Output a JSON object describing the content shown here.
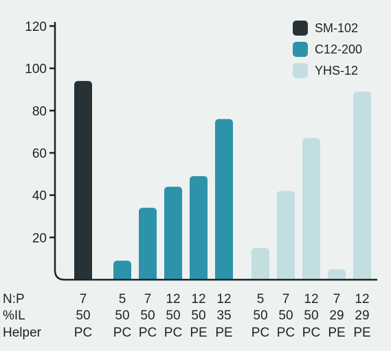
{
  "chart_data": {
    "type": "bar",
    "title": "",
    "xlabel": "",
    "ylabel": "",
    "ylim": [
      0,
      120
    ],
    "yticks": [
      20,
      40,
      60,
      80,
      100,
      120
    ],
    "grid": false,
    "legend_position": "top-right",
    "series": [
      {
        "name": "SM-102",
        "color": "#263236"
      },
      {
        "name": "C12-200",
        "color": "#2d93aa"
      },
      {
        "name": "YHS-12",
        "color": "#c3dee1"
      }
    ],
    "row_labels": [
      "N:P",
      "%IL",
      "Helper"
    ],
    "bars": [
      {
        "series": 0,
        "value": 94,
        "np": "7",
        "il": "50",
        "helper": "PC"
      },
      {
        "series": 1,
        "value": 9,
        "np": "5",
        "il": "50",
        "helper": "PC"
      },
      {
        "series": 1,
        "value": 34,
        "np": "7",
        "il": "50",
        "helper": "PC"
      },
      {
        "series": 1,
        "value": 44,
        "np": "12",
        "il": "50",
        "helper": "PC"
      },
      {
        "series": 1,
        "value": 49,
        "np": "12",
        "il": "50",
        "helper": "PE"
      },
      {
        "series": 1,
        "value": 76,
        "np": "12",
        "il": "35",
        "helper": "PE"
      },
      {
        "series": 2,
        "value": 15,
        "np": "5",
        "il": "50",
        "helper": "PC"
      },
      {
        "series": 2,
        "value": 42,
        "np": "7",
        "il": "50",
        "helper": "PC"
      },
      {
        "series": 2,
        "value": 67,
        "np": "12",
        "il": "50",
        "helper": "PC"
      },
      {
        "series": 2,
        "value": 5,
        "np": "7",
        "il": "29",
        "helper": "PE"
      },
      {
        "series": 2,
        "value": 89,
        "np": "12",
        "il": "29",
        "helper": "PE"
      }
    ]
  }
}
